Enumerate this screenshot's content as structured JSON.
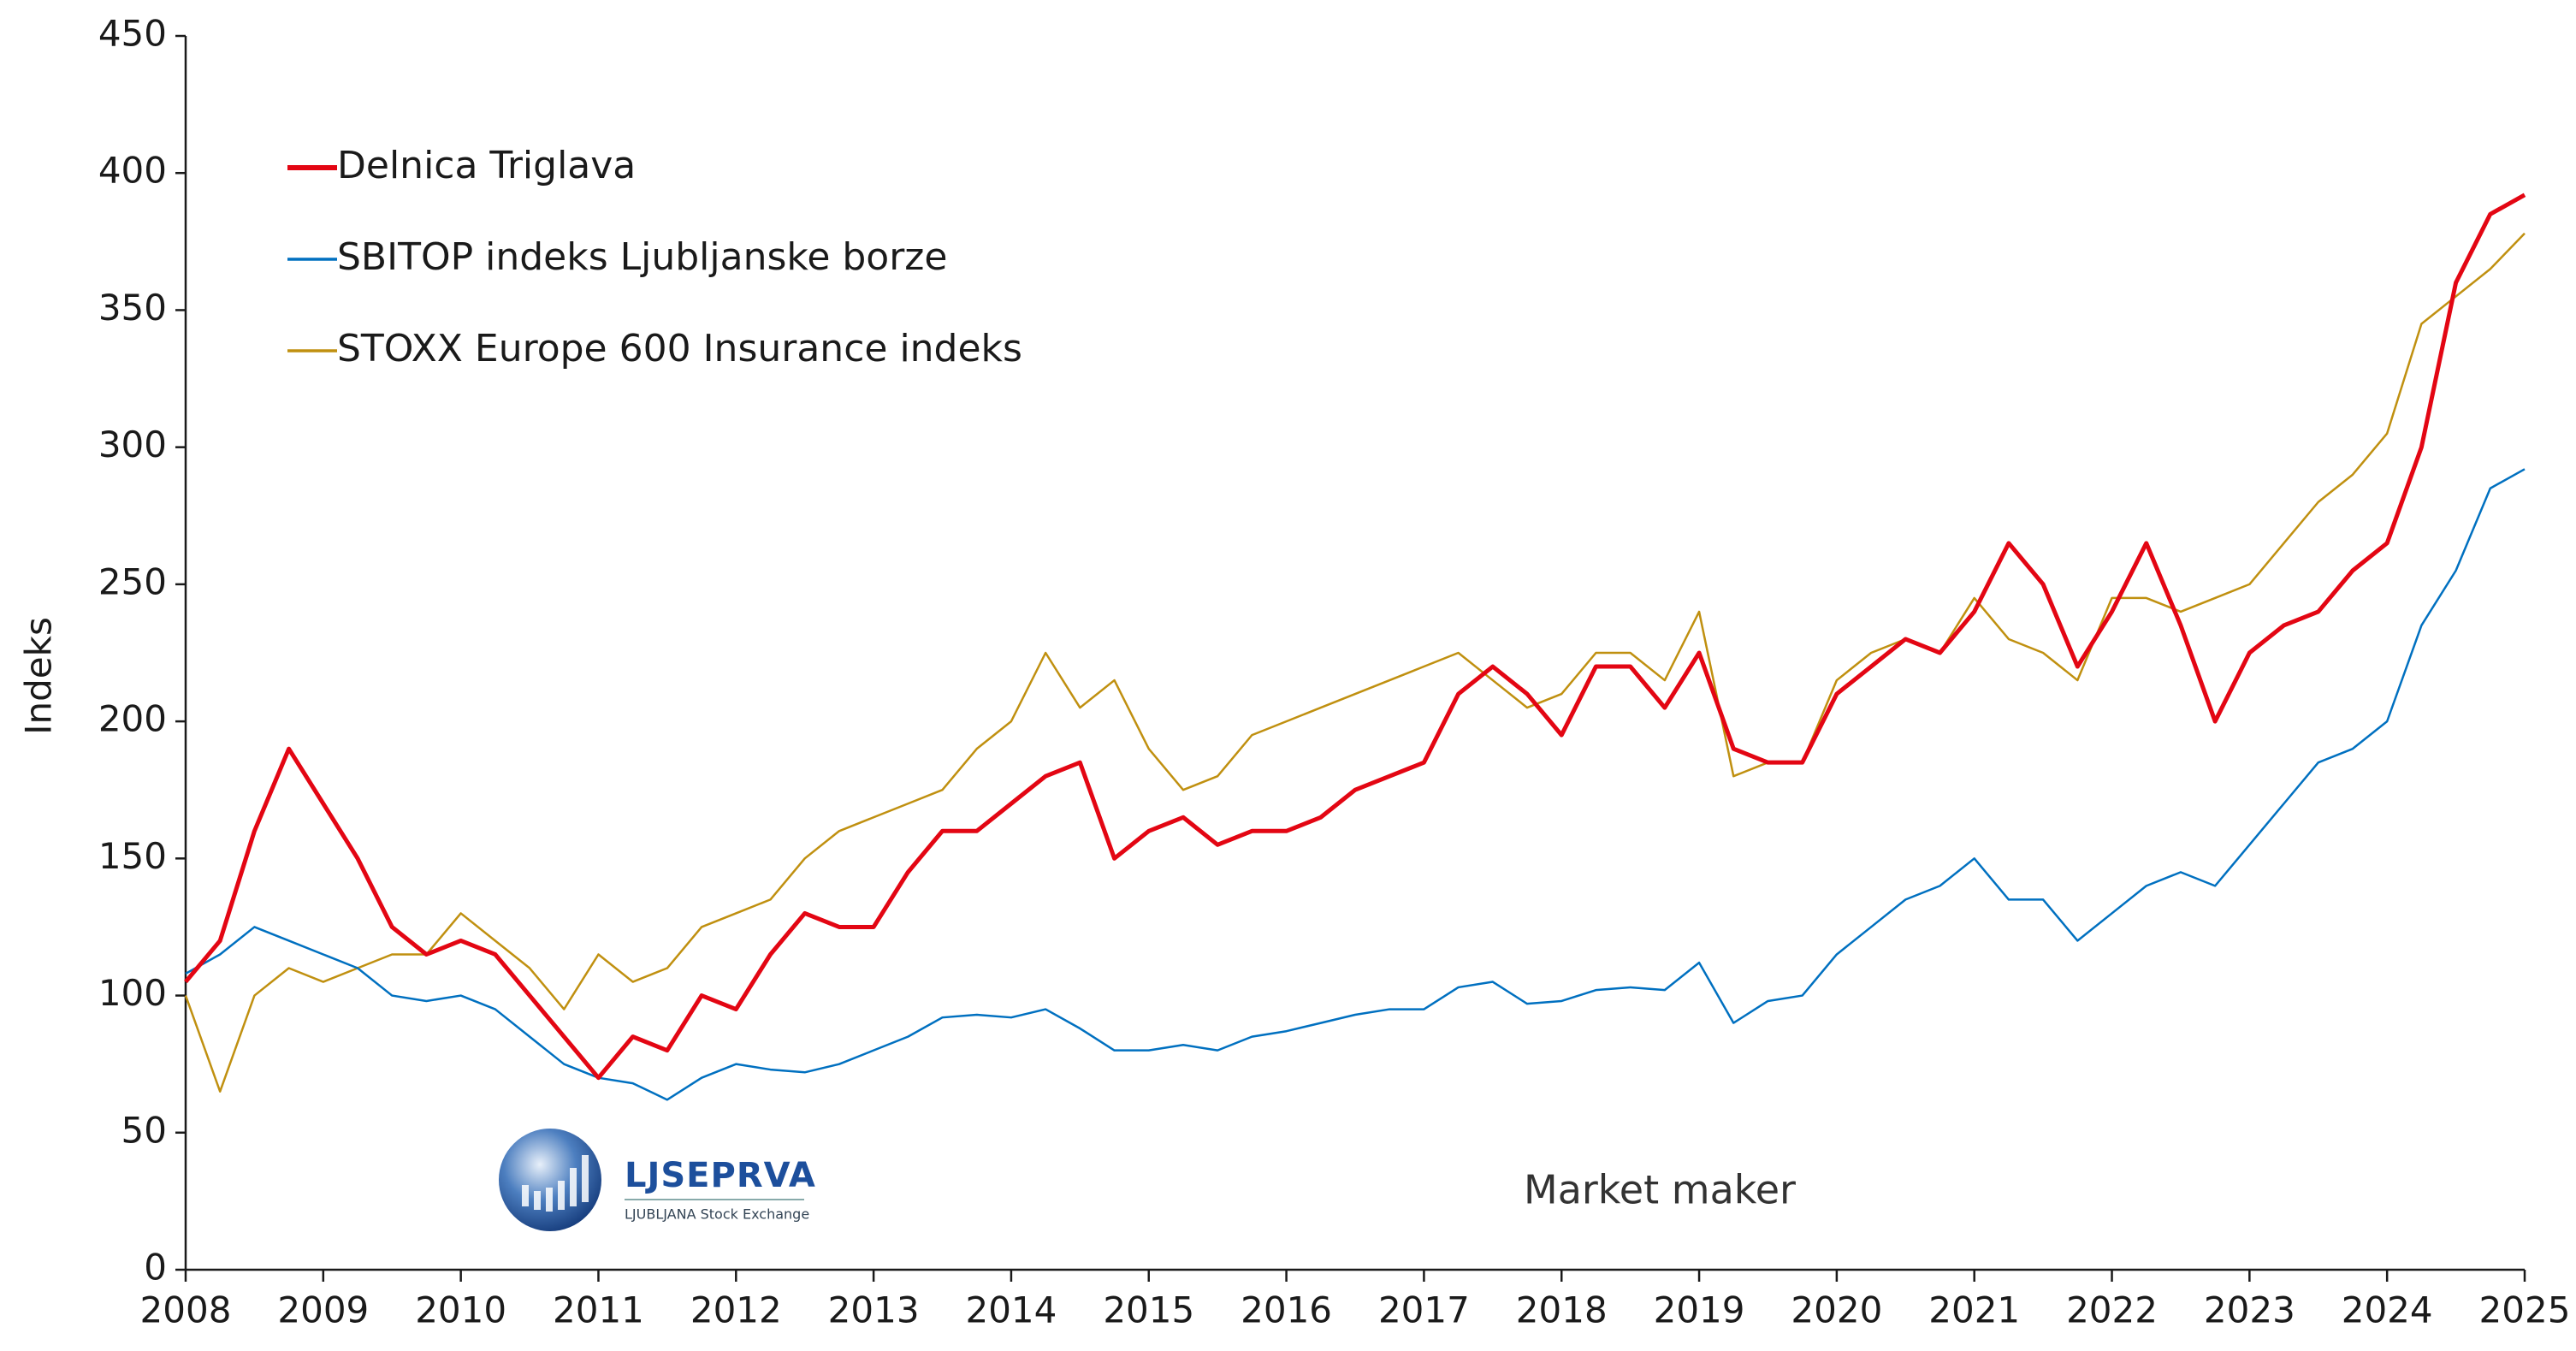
{
  "chart_data": {
    "type": "line",
    "y_label": "Indeks",
    "annotation": "Market maker",
    "logo": {
      "name": "LJSEPRVA",
      "subtitle": "LJUBLJANA Stock Exchange"
    },
    "xlim": [
      2008,
      2025
    ],
    "xticks": [
      2008,
      2009,
      2010,
      2011,
      2012,
      2013,
      2014,
      2015,
      2016,
      2017,
      2018,
      2019,
      2020,
      2021,
      2022,
      2023,
      2024,
      2025
    ],
    "ylim": [
      0,
      450
    ],
    "yticks": [
      0,
      50,
      100,
      150,
      200,
      250,
      300,
      350,
      400,
      450
    ],
    "grid": false,
    "legend": "top-left",
    "x": [
      2008,
      2008.25,
      2008.5,
      2008.75,
      2009,
      2009.25,
      2009.5,
      2009.75,
      2010,
      2010.25,
      2010.5,
      2010.75,
      2011,
      2011.25,
      2011.5,
      2011.75,
      2012,
      2012.25,
      2012.5,
      2012.75,
      2013,
      2013.25,
      2013.5,
      2013.75,
      2014,
      2014.25,
      2014.5,
      2014.75,
      2015,
      2015.25,
      2015.5,
      2015.75,
      2016,
      2016.25,
      2016.5,
      2016.75,
      2017,
      2017.25,
      2017.5,
      2017.75,
      2018,
      2018.25,
      2018.5,
      2018.75,
      2019,
      2019.25,
      2019.5,
      2019.75,
      2020,
      2020.25,
      2020.5,
      2020.75,
      2021,
      2021.25,
      2021.5,
      2021.75,
      2022,
      2022.25,
      2022.5,
      2022.75,
      2023,
      2023.25,
      2023.5,
      2023.75,
      2024,
      2024.25,
      2024.5,
      2024.75,
      2025
    ],
    "series": [
      {
        "name": "Delnica Triglava",
        "color": "#e30613",
        "width": 5,
        "values": [
          105,
          120,
          160,
          190,
          170,
          150,
          125,
          115,
          120,
          115,
          100,
          85,
          70,
          85,
          80,
          100,
          95,
          115,
          130,
          125,
          125,
          145,
          160,
          160,
          170,
          180,
          185,
          150,
          160,
          165,
          155,
          160,
          160,
          165,
          175,
          180,
          185,
          210,
          220,
          210,
          195,
          220,
          220,
          205,
          225,
          190,
          185,
          185,
          210,
          220,
          230,
          225,
          240,
          265,
          250,
          220,
          240,
          265,
          235,
          200,
          225,
          235,
          240,
          255,
          265,
          300,
          360,
          385,
          392
        ]
      },
      {
        "name": "SBITOP indeks Ljubljanske borze",
        "color": "#0070c0",
        "width": 2.5,
        "values": [
          108,
          115,
          125,
          120,
          115,
          110,
          100,
          98,
          100,
          95,
          85,
          75,
          70,
          68,
          62,
          70,
          75,
          73,
          72,
          75,
          80,
          85,
          92,
          93,
          92,
          95,
          88,
          80,
          80,
          82,
          80,
          85,
          87,
          90,
          93,
          95,
          95,
          103,
          105,
          97,
          98,
          102,
          103,
          102,
          112,
          90,
          98,
          100,
          115,
          125,
          135,
          140,
          150,
          135,
          135,
          120,
          130,
          140,
          145,
          140,
          155,
          170,
          185,
          190,
          200,
          235,
          255,
          285,
          292
        ]
      },
      {
        "name": "STOXX Europe 600 Insurance indeks",
        "color": "#c09010",
        "width": 2.5,
        "values": [
          100,
          65,
          100,
          110,
          105,
          110,
          115,
          115,
          130,
          120,
          110,
          95,
          115,
          105,
          110,
          125,
          130,
          135,
          150,
          160,
          165,
          170,
          175,
          190,
          200,
          225,
          205,
          215,
          190,
          175,
          180,
          195,
          200,
          205,
          210,
          215,
          220,
          225,
          215,
          205,
          210,
          225,
          225,
          215,
          240,
          180,
          185,
          185,
          215,
          225,
          230,
          225,
          245,
          230,
          225,
          215,
          245,
          245,
          240,
          245,
          250,
          265,
          280,
          290,
          305,
          345,
          355,
          365,
          378
        ]
      }
    ]
  }
}
